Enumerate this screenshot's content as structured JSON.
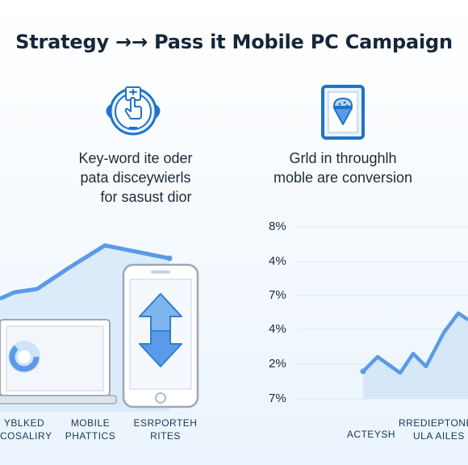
{
  "title": "Strategy →→ Pass it Mobile PC Campaign",
  "left_section": {
    "icon": "tap-hand-icon",
    "desc_lines": [
      "Key-word ite oder",
      "pata disceywierls",
      "for sasust dior"
    ]
  },
  "right_section": {
    "icon": "mobile-icecream-icon",
    "desc_lines": [
      "Grld in throughlh",
      "moble are conversion"
    ]
  },
  "left_chart": {
    "devices": [
      "laptop-donut-icon",
      "phone-arrows-icon"
    ],
    "bottom_labels": [
      {
        "line1": "YBLKED",
        "line2": "COSALIRY"
      },
      {
        "line1": "MOBILE",
        "line2": "PHATTICS"
      },
      {
        "line1": "ESRPORTEH",
        "line2": "RITES"
      }
    ]
  },
  "right_chart": {
    "y_labels": [
      "8%",
      "4%",
      "7%",
      "4%",
      "2%",
      "7%"
    ],
    "bottom_labels": [
      {
        "line1": "",
        "line2": "ACTEYSH"
      },
      {
        "line1": "RREDIEPTONES",
        "line2": "ULA AILES"
      }
    ]
  },
  "colors": {
    "accent": "#1f73c7",
    "line": "#5b9ae8",
    "area": "#cfe4f7",
    "text": "#1b2a3a"
  }
}
